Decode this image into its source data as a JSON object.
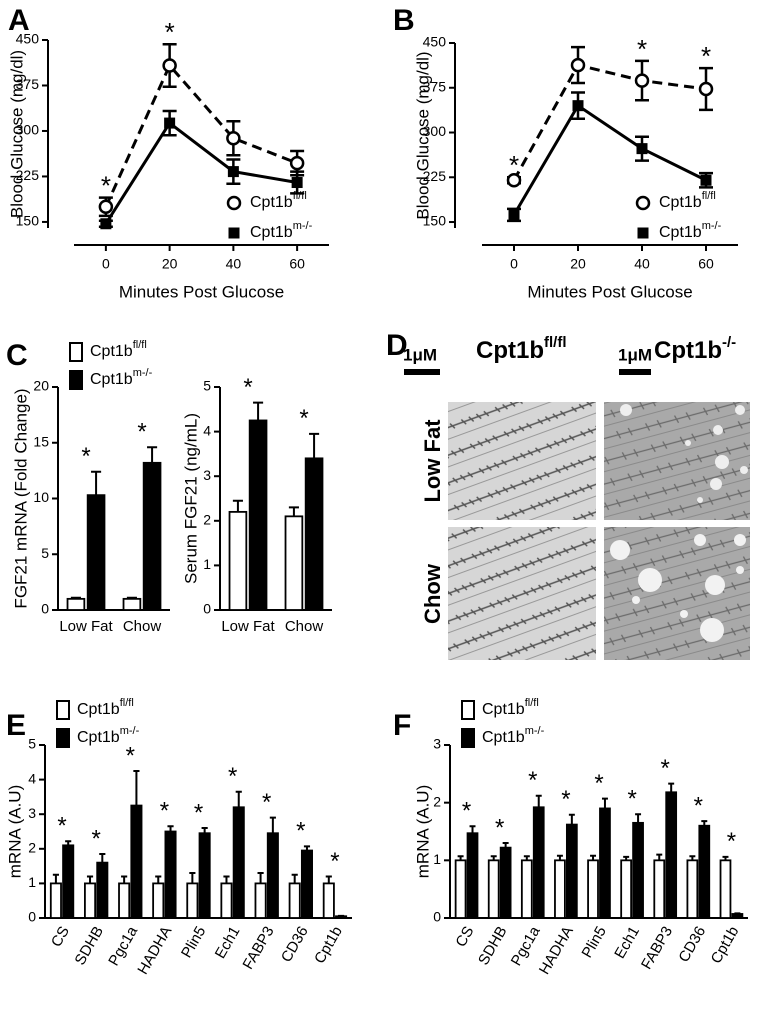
{
  "chart_data": [
    {
      "type": "line",
      "panel": "A",
      "ylabel": "Blood Glucose (mg/dl)",
      "xlabel": "Minutes Post Glucose",
      "x": [
        0,
        20,
        40,
        60
      ],
      "xlim": [
        -10,
        70
      ],
      "xticks": [
        0,
        20,
        40,
        60
      ],
      "ylim": [
        140,
        450
      ],
      "yticks": [
        150,
        225,
        300,
        375,
        450
      ],
      "legend": "lower right",
      "series": [
        {
          "name": "Cpt1b",
          "superscript": "fl/fl",
          "color": "#000000",
          "marker": "open-circle",
          "line_style": "dashed",
          "values": [
            175,
            408,
            288,
            247
          ],
          "errors": [
            15,
            35,
            28,
            20
          ]
        },
        {
          "name": "Cpt1b",
          "superscript": "m-/-",
          "color": "#000000",
          "marker": "square",
          "line_style": "solid",
          "values": [
            147,
            313,
            233,
            215
          ],
          "errors": [
            5,
            20,
            20,
            18
          ]
        }
      ],
      "annotations": [
        {
          "text": "*",
          "x": 0
        },
        {
          "text": "*",
          "x": 20
        }
      ]
    },
    {
      "type": "line",
      "panel": "B",
      "ylabel": "Blood Glucose (mg/dl)",
      "xlabel": "Minutes Post Glucose",
      "x": [
        0,
        20,
        40,
        60
      ],
      "xlim": [
        -10,
        70
      ],
      "xticks": [
        0,
        20,
        40,
        60
      ],
      "ylim": [
        140,
        450
      ],
      "yticks": [
        150,
        225,
        300,
        375,
        450
      ],
      "legend": "lower right",
      "series": [
        {
          "name": "Cpt1b",
          "superscript": "fl/fl",
          "color": "#000000",
          "marker": "open-circle",
          "line_style": "dashed",
          "values": [
            220,
            413,
            387,
            373
          ],
          "errors": [
            5,
            30,
            33,
            35
          ]
        },
        {
          "name": "Cpt1b",
          "superscript": "m-/-",
          "color": "#000000",
          "marker": "square",
          "line_style": "solid",
          "values": [
            162,
            345,
            273,
            220
          ],
          "errors": [
            10,
            22,
            20,
            12
          ]
        }
      ],
      "annotations": [
        {
          "text": "*",
          "x": 0
        },
        {
          "text": "*",
          "x": 40
        },
        {
          "text": "*",
          "x": 60
        }
      ]
    },
    {
      "type": "bar",
      "panel": "C",
      "ylabel": "FGF21 mRNA (Fold Change)",
      "categories": [
        "Low Fat",
        "Chow"
      ],
      "ylim": [
        0,
        20
      ],
      "yticks": [
        0,
        5,
        10,
        15,
        20
      ],
      "legend": "upper left",
      "series": [
        {
          "name": "Cpt1b",
          "superscript": "fl/fl",
          "color": "#ffffff",
          "values": [
            1.0,
            1.0
          ],
          "errors": [
            0.1,
            0.1
          ]
        },
        {
          "name": "Cpt1b",
          "superscript": "m-/-",
          "color": "#000000",
          "values": [
            10.3,
            13.2
          ],
          "errors": [
            2.1,
            1.4
          ]
        }
      ],
      "annotations": [
        {
          "text": "*",
          "category": "Low Fat"
        },
        {
          "text": "*",
          "category": "Chow"
        }
      ]
    },
    {
      "type": "bar",
      "ylabel": "Serum FGF21 (ng/mL)",
      "categories": [
        "Low Fat",
        "Chow"
      ],
      "ylim": [
        0,
        5
      ],
      "yticks": [
        0,
        1,
        2,
        3,
        4,
        5
      ],
      "series": [
        {
          "color": "#ffffff",
          "values": [
            2.2,
            2.1
          ],
          "errors": [
            0.25,
            0.2
          ]
        },
        {
          "color": "#000000",
          "values": [
            4.25,
            3.4
          ],
          "errors": [
            0.4,
            0.55
          ]
        }
      ],
      "annotations": [
        {
          "text": "*",
          "category": "Low Fat"
        },
        {
          "text": "*",
          "category": "Chow"
        }
      ]
    },
    {
      "type": "bar",
      "panel": "E",
      "ylabel": "mRNA (A.U)",
      "categories": [
        "CS",
        "SDHB",
        "Pgc1a",
        "HADHA",
        "Plin5",
        "Ech1",
        "FABP3",
        "CD36",
        "Cpt1b"
      ],
      "ylim": [
        0,
        5
      ],
      "yticks": [
        0,
        1,
        2,
        3,
        4,
        5
      ],
      "legend": "upper left",
      "series": [
        {
          "name": "Cpt1b",
          "superscript": "fl/fl",
          "color": "#ffffff",
          "values": [
            1,
            1,
            1,
            1,
            1,
            1,
            1,
            1,
            1
          ],
          "errors": [
            0.25,
            0.2,
            0.2,
            0.2,
            0.3,
            0.2,
            0.3,
            0.25,
            0.2
          ]
        },
        {
          "name": "Cpt1b",
          "superscript": "m-/-",
          "color": "#000000",
          "values": [
            2.1,
            1.6,
            3.25,
            2.5,
            2.45,
            3.2,
            2.45,
            1.95,
            0.05
          ],
          "errors": [
            0.12,
            0.25,
            1.0,
            0.15,
            0.15,
            0.45,
            0.45,
            0.12,
            0.01
          ]
        }
      ],
      "annotations": [
        {
          "text": "*",
          "category": "CS"
        },
        {
          "text": "*",
          "category": "SDHB"
        },
        {
          "text": "*",
          "category": "Pgc1a"
        },
        {
          "text": "*",
          "category": "HADHA"
        },
        {
          "text": "*",
          "category": "Plin5"
        },
        {
          "text": "*",
          "category": "Ech1"
        },
        {
          "text": "*",
          "category": "FABP3"
        },
        {
          "text": "*",
          "category": "CD36"
        },
        {
          "text": "*",
          "category": "Cpt1b"
        }
      ]
    },
    {
      "type": "bar",
      "panel": "F",
      "ylabel": "mRNA (A.U)",
      "categories": [
        "CS",
        "SDHB",
        "Pgc1a",
        "HADHA",
        "Plin5",
        "Ech1",
        "FABP3",
        "CD36",
        "Cpt1b"
      ],
      "ylim": [
        0,
        3
      ],
      "yticks": [
        0,
        1,
        2,
        3
      ],
      "legend": "upper left",
      "series": [
        {
          "name": "Cpt1b",
          "superscript": "fl/fl",
          "color": "#ffffff",
          "values": [
            1,
            1,
            1,
            1,
            1,
            1,
            1,
            1,
            1
          ],
          "errors": [
            0.07,
            0.07,
            0.07,
            0.08,
            0.08,
            0.06,
            0.1,
            0.07,
            0.06
          ]
        },
        {
          "name": "Cpt1b",
          "superscript": "m-/-",
          "color": "#000000",
          "values": [
            1.47,
            1.22,
            1.92,
            1.62,
            1.9,
            1.65,
            2.18,
            1.6,
            0.07
          ],
          "errors": [
            0.12,
            0.08,
            0.2,
            0.17,
            0.17,
            0.15,
            0.15,
            0.08,
            0.01
          ]
        }
      ],
      "annotations": [
        {
          "text": "*",
          "category": "CS"
        },
        {
          "text": "*",
          "category": "SDHB"
        },
        {
          "text": "*",
          "category": "Pgc1a"
        },
        {
          "text": "*",
          "category": "HADHA"
        },
        {
          "text": "*",
          "category": "Plin5"
        },
        {
          "text": "*",
          "category": "Ech1"
        },
        {
          "text": "*",
          "category": "FABP3"
        },
        {
          "text": "*",
          "category": "CD36"
        },
        {
          "text": "*",
          "category": "Cpt1b"
        }
      ]
    }
  ],
  "panel_d": {
    "panel": "D",
    "columns": [
      {
        "scale": "1μM",
        "label": "Cpt1b",
        "superscript": "fl/fl"
      },
      {
        "scale": "1μM",
        "label": "Cpt1b",
        "superscript": "-/-"
      }
    ],
    "rows": [
      "Low Fat",
      "Chow"
    ]
  }
}
